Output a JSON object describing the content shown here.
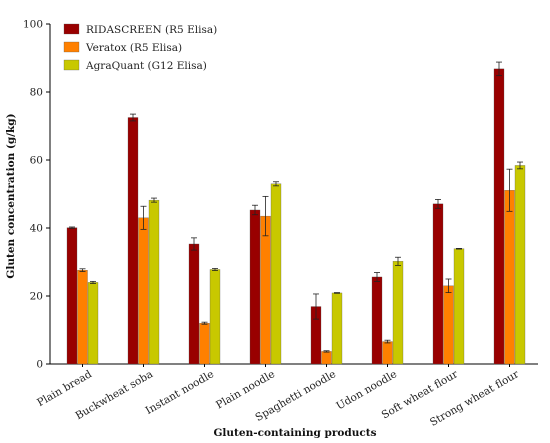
{
  "chart_data": {
    "type": "bar",
    "title": "",
    "xlabel": "Gluten-containing products",
    "ylabel": "Gluten concentration (g/kg)",
    "ylim": [
      0,
      100
    ],
    "yticks": [
      "0",
      "20",
      "40",
      "60",
      "80",
      "100"
    ],
    "ytick_values": [
      0,
      20,
      40,
      60,
      80,
      100
    ],
    "grid": false,
    "legend_position": "top-left",
    "categories": [
      "Plain bread",
      "Buckwheat soba",
      "Instant noodle",
      "Plain noodle",
      "Spaghetti noodle",
      "Udon noodle",
      "Soft wheat flour",
      "Strong wheat flour"
    ],
    "series": [
      {
        "name": "RIDASCREEN (R5 Elisa)",
        "color": "#990000",
        "values": [
          40.1,
          72.5,
          35.3,
          45.3,
          16.9,
          25.6,
          47.1,
          86.8
        ],
        "errors": [
          0.2,
          1.0,
          1.8,
          1.4,
          3.7,
          1.3,
          1.3,
          2.0
        ]
      },
      {
        "name": "Veratox (R5 Elisa)",
        "color": "#ff8000",
        "values": [
          27.6,
          43.0,
          12.0,
          43.5,
          3.7,
          6.6,
          23.0,
          51.1
        ],
        "errors": [
          0.4,
          3.4,
          0.3,
          5.8,
          0.2,
          0.4,
          2.0,
          6.2
        ]
      },
      {
        "name": "AgraQuant (G12 Elisa)",
        "color": "#c8c800",
        "values": [
          24.0,
          48.2,
          27.8,
          53.0,
          20.9,
          30.2,
          33.9,
          58.4
        ],
        "errors": [
          0.3,
          0.6,
          0.3,
          0.6,
          0.1,
          1.2,
          0.1,
          1.0
        ]
      }
    ]
  }
}
